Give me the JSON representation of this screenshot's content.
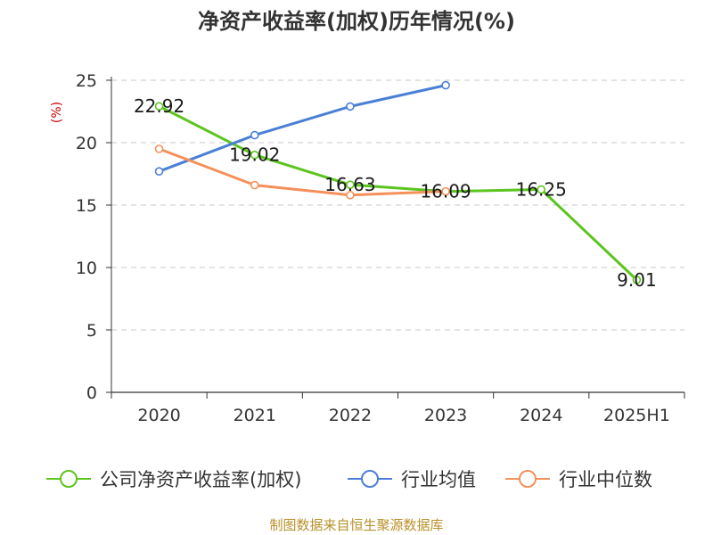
{
  "chart_data": {
    "type": "line",
    "title": "净资产收益率(加权)历年情况(%)",
    "ylabel": "(%)",
    "xlabel": "",
    "categories": [
      "2020",
      "2021",
      "2022",
      "2023",
      "2024",
      "2025H1"
    ],
    "ylim": [
      0,
      25
    ],
    "yticks": [
      0,
      5,
      10,
      15,
      20,
      25
    ],
    "grid": true,
    "legend_position": "bottom",
    "series": [
      {
        "name": "公司净资产收益率(加权)",
        "color": "#5cc41f",
        "values": [
          22.92,
          19.02,
          16.63,
          16.09,
          16.25,
          9.01
        ],
        "data_labels": [
          "22.92",
          "19.02",
          "16.63",
          "16.09",
          "16.25",
          "9.01"
        ]
      },
      {
        "name": "行业均值",
        "color": "#4a7fd6",
        "values": [
          17.7,
          20.6,
          22.9,
          24.6,
          null,
          null
        ]
      },
      {
        "name": "行业中位数",
        "color": "#f4905a",
        "values": [
          19.5,
          16.6,
          15.8,
          16.1,
          null,
          null
        ]
      }
    ],
    "source": "制图数据来自恒生聚源数据库"
  }
}
